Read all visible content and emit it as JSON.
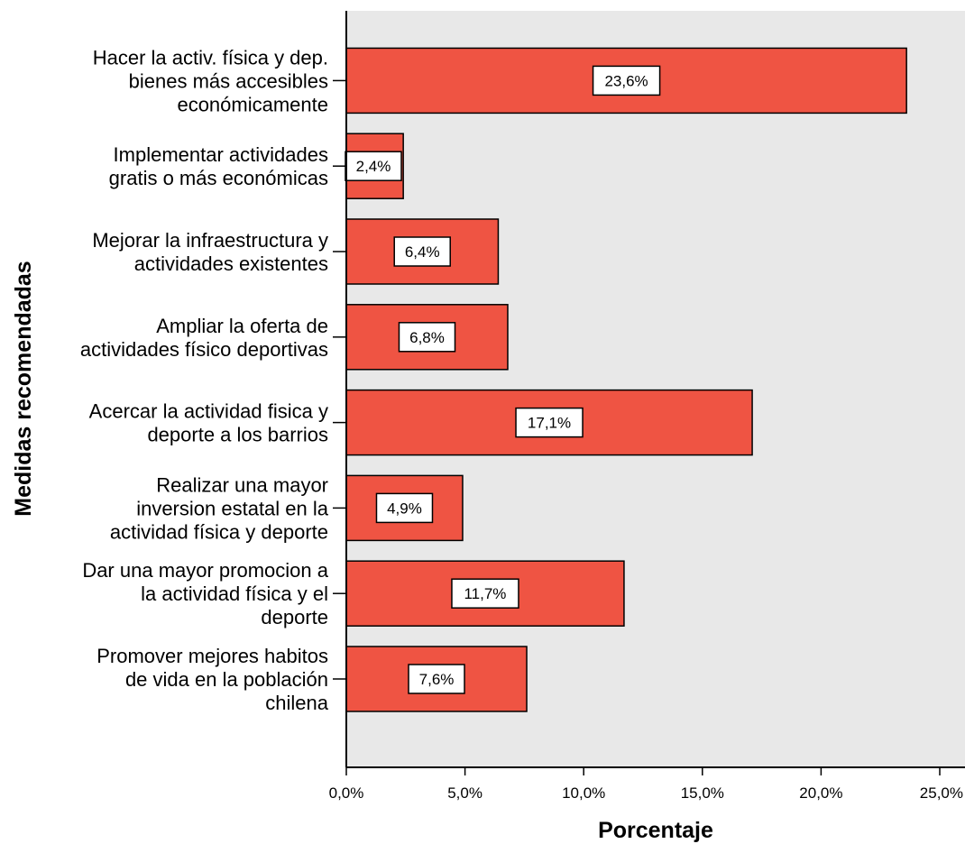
{
  "chart_data": {
    "type": "bar",
    "orientation": "horizontal",
    "categories": [
      [
        "Hacer la activ. física y dep.",
        "bienes más accesibles",
        "económicamente"
      ],
      [
        "Implementar actividades",
        "gratis o más económicas"
      ],
      [
        "Mejorar la infraestructura y",
        "actividades existentes"
      ],
      [
        "Ampliar la oferta de",
        "actividades físico deportivas"
      ],
      [
        "Acercar la actividad fisica y",
        "deporte a los barrios"
      ],
      [
        "Realizar una mayor",
        "inversion estatal en la",
        "actividad física y deporte"
      ],
      [
        "Dar una mayor promocion a",
        "la actividad física y el",
        "deporte"
      ],
      [
        "Promover mejores habitos",
        "de vida en la población",
        "chilena"
      ]
    ],
    "values": [
      23.6,
      2.4,
      6.4,
      6.8,
      17.1,
      4.9,
      11.7,
      7.6
    ],
    "data_labels": [
      "23,6%",
      "2,4%",
      "6,4%",
      "6,8%",
      "17,1%",
      "4,9%",
      "11,7%",
      "7,6%"
    ],
    "xlabel": "Porcentaje",
    "ylabel": "Medidas recomendadas",
    "xlim": [
      0,
      25.8
    ],
    "xticks": [
      0,
      5,
      10,
      15,
      20,
      25
    ],
    "xtick_labels": [
      "0,0%",
      "5,0%",
      "10,0%",
      "15,0%",
      "20,0%",
      "25,0%"
    ],
    "grid": false,
    "legend": "none",
    "colors": {
      "bar": "#ef5443",
      "plot_background": "#e8e8e8",
      "bar_border": "#000000"
    }
  }
}
